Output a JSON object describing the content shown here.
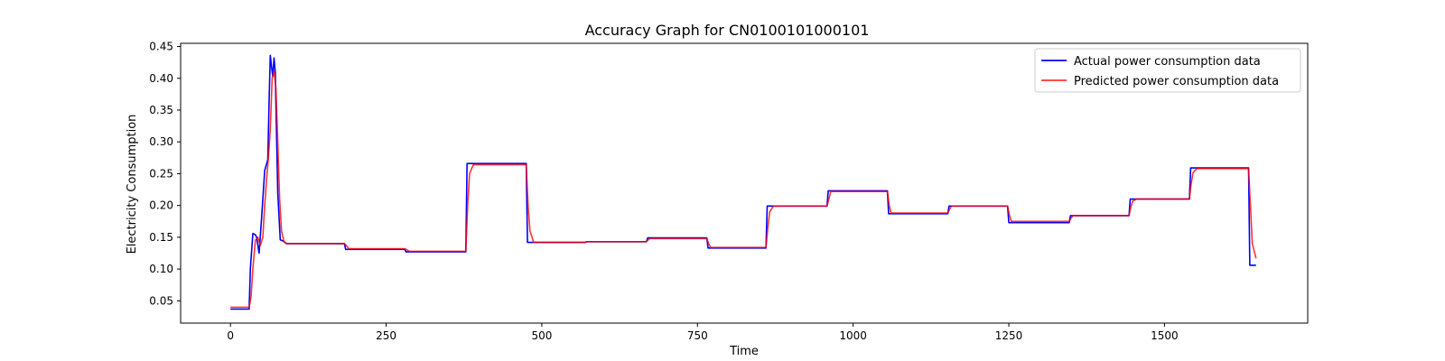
{
  "chart_data": {
    "type": "line",
    "title": "Accuracy Graph for CN0100101000101",
    "xlabel": "Time",
    "ylabel": "Electricity Consumption",
    "xlim": [
      -80,
      1730
    ],
    "ylim": [
      0.015,
      0.455
    ],
    "xticks": [
      0,
      250,
      500,
      750,
      1000,
      1250,
      1500
    ],
    "yticks": [
      0.05,
      0.1,
      0.15,
      0.2,
      0.25,
      0.3,
      0.35,
      0.4,
      0.45
    ],
    "ytick_labels": [
      "0.05",
      "0.10",
      "0.15",
      "0.20",
      "0.25",
      "0.30",
      "0.35",
      "0.40",
      "0.45"
    ],
    "grid": false,
    "legend_position": "top-right",
    "series": [
      {
        "name": "Actual power consumption data",
        "color": "#0000ff",
        "x": [
          0,
          30,
          32,
          36,
          40,
          42,
          46,
          50,
          55,
          60,
          62,
          64,
          66,
          68,
          70,
          72,
          76,
          80,
          85,
          90,
          183,
          185,
          280,
          282,
          378,
          380,
          475,
          477,
          570,
          572,
          668,
          670,
          765,
          767,
          860,
          862,
          958,
          960,
          1055,
          1057,
          1152,
          1154,
          1248,
          1250,
          1347,
          1349,
          1443,
          1445,
          1540,
          1542,
          1635,
          1637,
          1647
        ],
        "y": [
          0.037,
          0.037,
          0.1,
          0.156,
          0.154,
          0.15,
          0.125,
          0.18,
          0.255,
          0.272,
          0.36,
          0.436,
          0.418,
          0.403,
          0.432,
          0.41,
          0.22,
          0.146,
          0.144,
          0.14,
          0.14,
          0.131,
          0.131,
          0.127,
          0.127,
          0.266,
          0.266,
          0.142,
          0.142,
          0.143,
          0.143,
          0.149,
          0.149,
          0.133,
          0.133,
          0.199,
          0.199,
          0.223,
          0.223,
          0.187,
          0.187,
          0.199,
          0.199,
          0.173,
          0.173,
          0.184,
          0.184,
          0.21,
          0.21,
          0.259,
          0.259,
          0.106,
          0.106
        ]
      },
      {
        "name": "Predicted power consumption data",
        "color": "#ff0000",
        "x": [
          0,
          30,
          33,
          36,
          40,
          44,
          48,
          52,
          55,
          58,
          61,
          64,
          67,
          70,
          73,
          76,
          79,
          82,
          86,
          90,
          183,
          187,
          190,
          280,
          284,
          287,
          378,
          381,
          384,
          390,
          475,
          478,
          481,
          487,
          570,
          573,
          668,
          671,
          674,
          765,
          768,
          771,
          860,
          863,
          866,
          872,
          958,
          961,
          964,
          1055,
          1058,
          1061,
          1152,
          1155,
          1158,
          1248,
          1251,
          1254,
          1347,
          1350,
          1353,
          1443,
          1446,
          1449,
          1455,
          1540,
          1543,
          1546,
          1552,
          1635,
          1638,
          1641,
          1647
        ],
        "y": [
          0.04,
          0.04,
          0.055,
          0.1,
          0.145,
          0.15,
          0.137,
          0.15,
          0.2,
          0.24,
          0.275,
          0.32,
          0.4,
          0.412,
          0.385,
          0.3,
          0.21,
          0.16,
          0.143,
          0.14,
          0.14,
          0.136,
          0.132,
          0.132,
          0.13,
          0.128,
          0.128,
          0.2,
          0.25,
          0.264,
          0.264,
          0.2,
          0.16,
          0.142,
          0.142,
          0.143,
          0.143,
          0.146,
          0.148,
          0.148,
          0.14,
          0.134,
          0.134,
          0.165,
          0.19,
          0.199,
          0.199,
          0.21,
          0.222,
          0.222,
          0.2,
          0.188,
          0.188,
          0.194,
          0.199,
          0.199,
          0.185,
          0.175,
          0.175,
          0.18,
          0.184,
          0.184,
          0.198,
          0.207,
          0.21,
          0.21,
          0.235,
          0.252,
          0.258,
          0.258,
          0.2,
          0.14,
          0.117
        ]
      }
    ]
  }
}
